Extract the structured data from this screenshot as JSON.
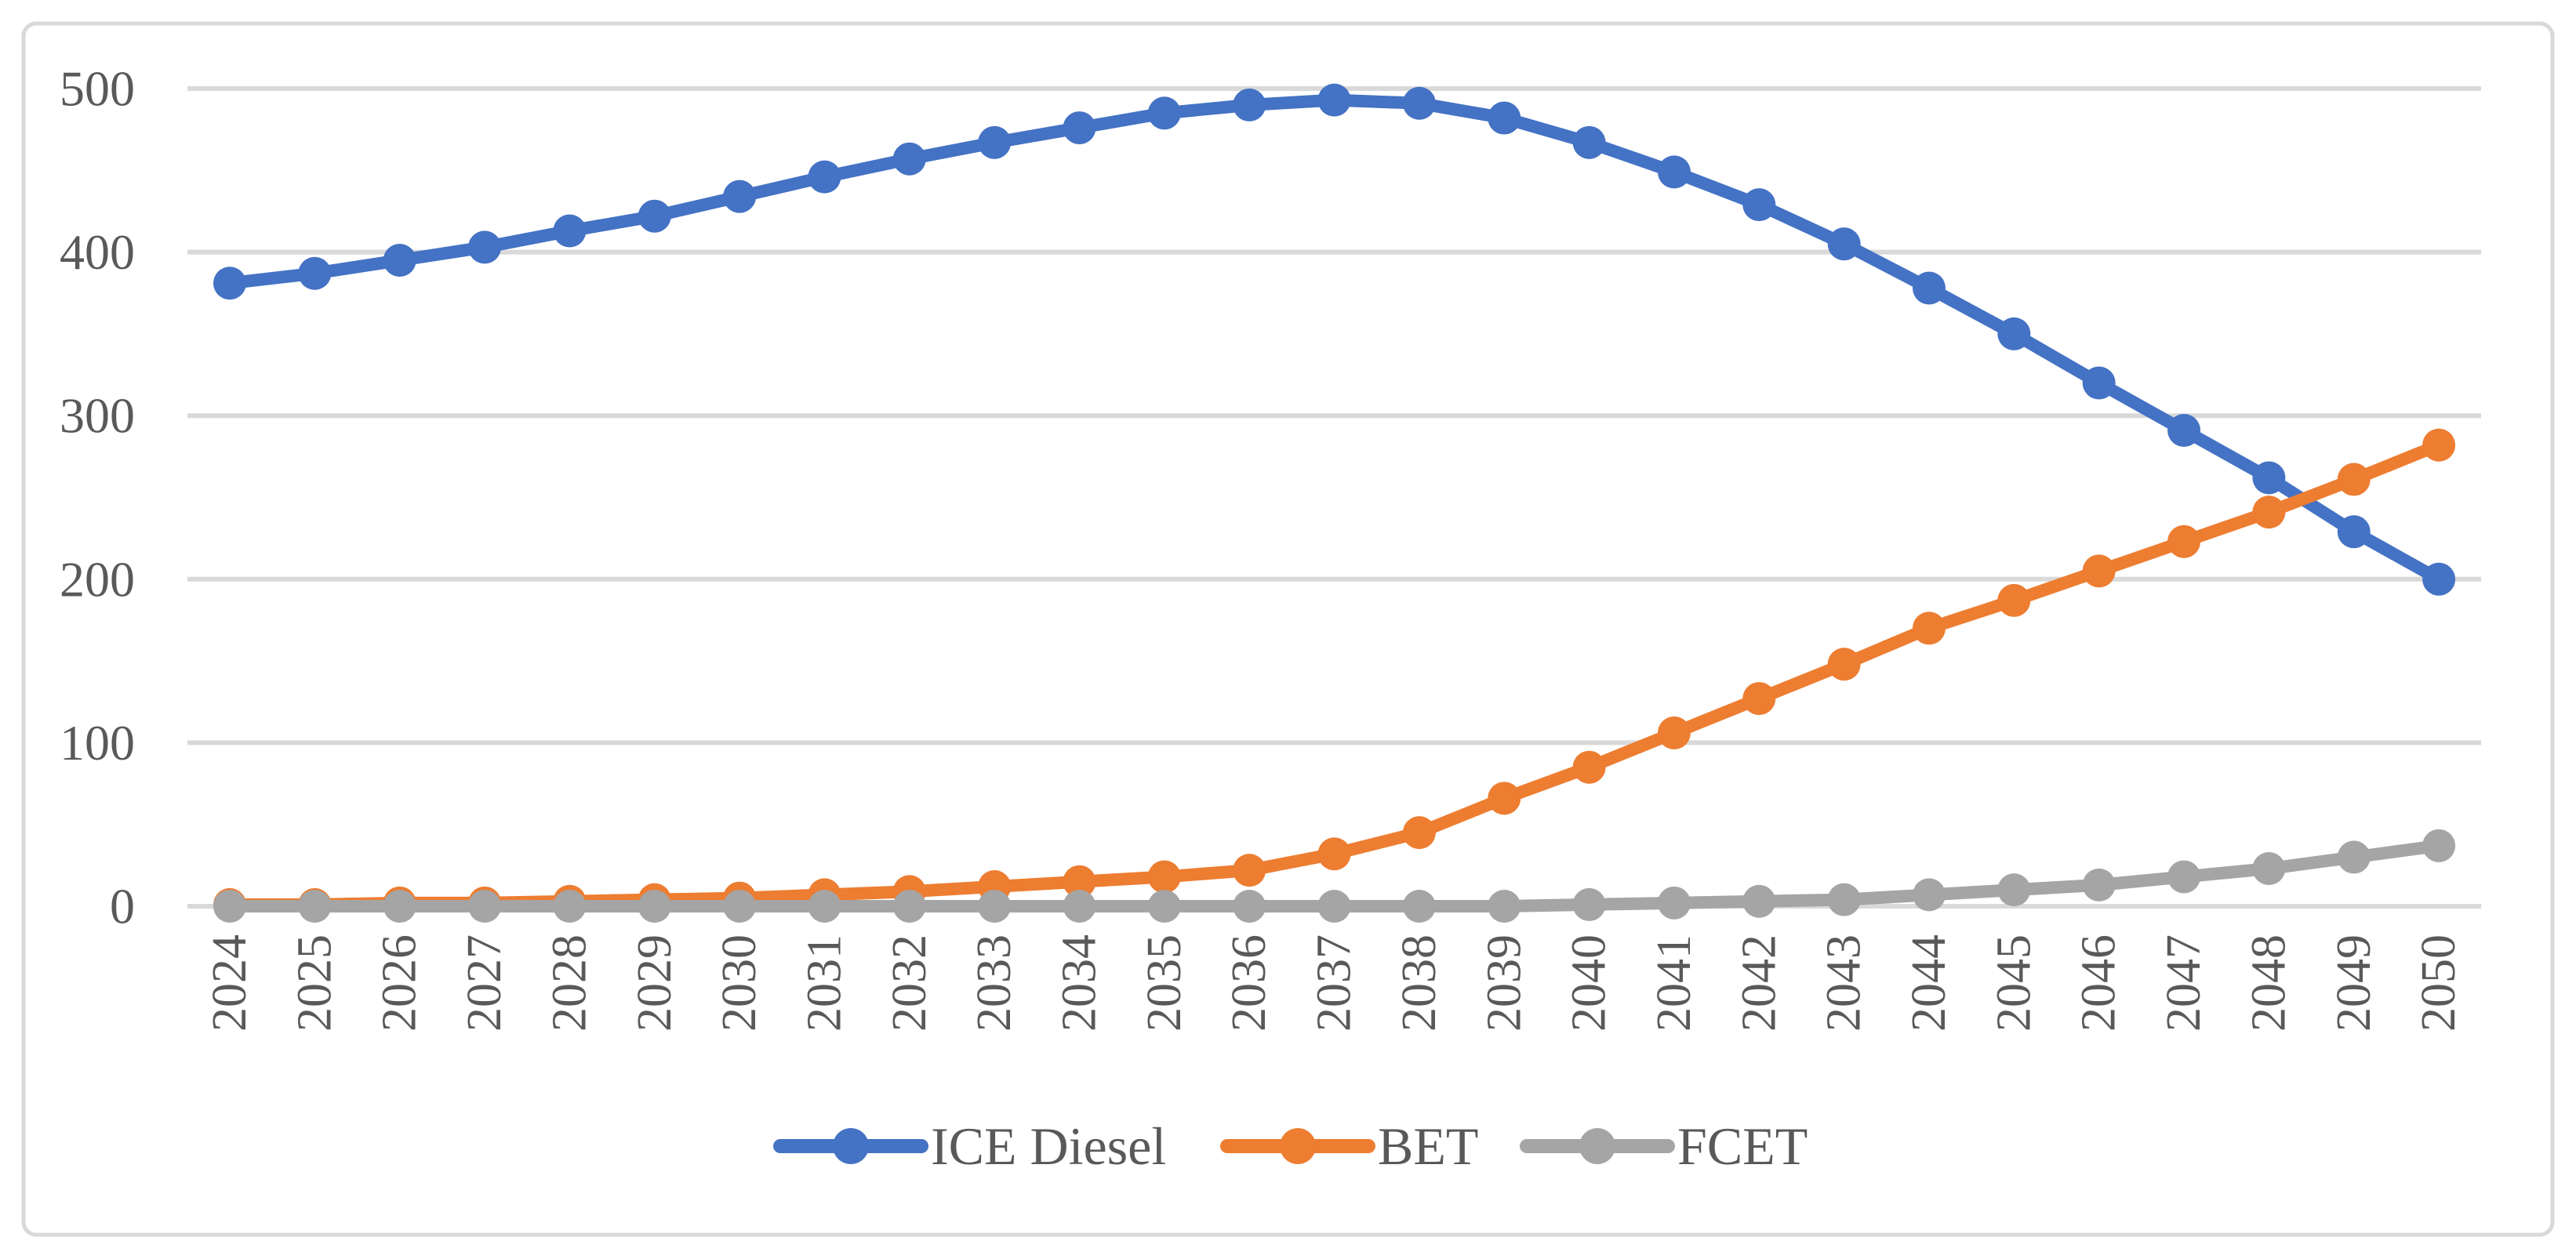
{
  "figure": {
    "background": "#FFFFFF",
    "border_color": "#D9D9D9"
  },
  "chart_data": {
    "type": "line",
    "title": "",
    "xlabel": "",
    "ylabel": "",
    "grid": true,
    "legend_position": "bottom",
    "ylim": [
      0,
      500
    ],
    "yticks": [
      0,
      100,
      200,
      300,
      400,
      500
    ],
    "ytick_labels": [
      "0",
      "100",
      "200",
      "300",
      "400",
      "500"
    ],
    "x": [
      2024,
      2025,
      2026,
      2027,
      2028,
      2029,
      2030,
      2031,
      2032,
      2033,
      2034,
      2035,
      2036,
      2037,
      2038,
      2039,
      2040,
      2041,
      2042,
      2043,
      2044,
      2045,
      2046,
      2047,
      2048,
      2049,
      2050
    ],
    "series": [
      {
        "name": "ICE Diesel",
        "color": "#4472C4",
        "values": [
          381,
          387,
          395,
          403,
          413,
          422,
          434,
          446,
          457,
          467,
          476,
          485,
          490,
          493,
          491,
          482,
          467,
          449,
          429,
          405,
          378,
          350,
          320,
          291,
          262,
          229,
          200
        ]
      },
      {
        "name": "BET",
        "color": "#ED7D31",
        "values": [
          1,
          1,
          2,
          2,
          3,
          4,
          5,
          7,
          9,
          12,
          15,
          18,
          22,
          32,
          45,
          66,
          85,
          106,
          127,
          148,
          170,
          187,
          205,
          223,
          241,
          261,
          282
        ]
      },
      {
        "name": "FCET",
        "color": "#A5A5A5",
        "values": [
          0,
          0,
          0,
          0,
          0,
          0,
          0,
          0,
          0,
          0,
          0,
          0,
          0,
          0,
          0,
          0,
          1,
          2,
          3,
          4,
          7,
          10,
          13,
          18,
          23,
          30,
          37
        ]
      }
    ],
    "gridline_color": "#D9D9D9",
    "text_color": "#595959"
  }
}
